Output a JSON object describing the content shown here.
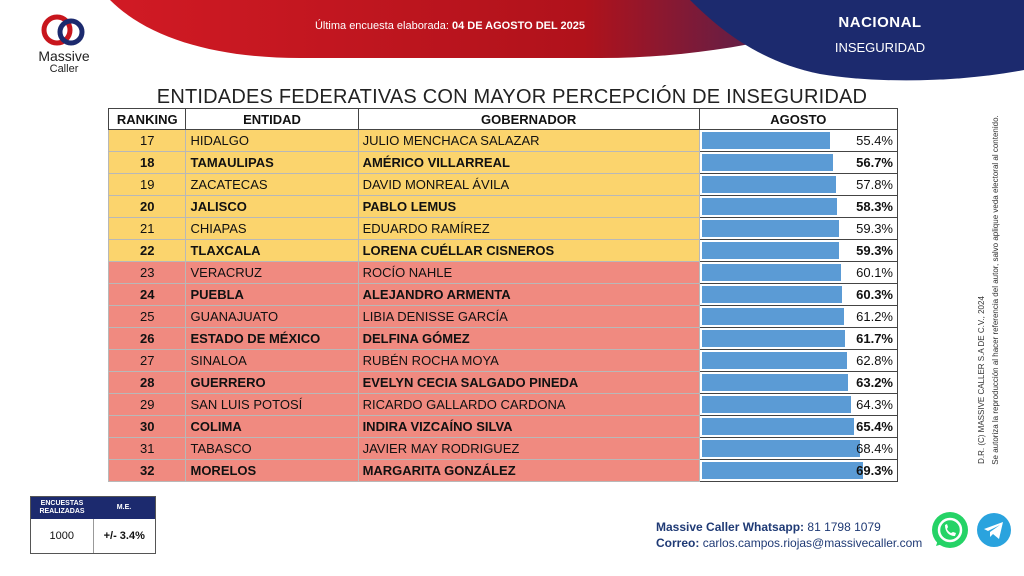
{
  "header": {
    "survey_label": "Última encuesta elaborada:",
    "survey_date": "04 DE AGOSTO DEL 2025",
    "scope": "NACIONAL",
    "topic": "INSEGURIDAD",
    "brand_line1": "Massive",
    "brand_line2": "Caller"
  },
  "colors": {
    "yellow_rows": "#fbd46d",
    "red_rows": "#f08a80",
    "bar": "#5b9bd5",
    "navy": "#1c2a6e",
    "crimson": "#b0121b"
  },
  "chart_data": {
    "type": "table",
    "title": "ENTIDADES FEDERATIVAS CON MAYOR PERCEPCIÓN DE INSEGURIDAD",
    "columns": [
      "RANKING",
      "ENTIDAD",
      "GOBERNADOR",
      "AGOSTO"
    ],
    "rows": [
      {
        "rank": "17",
        "entity": "HIDALGO",
        "governor": "JULIO MENCHACA SALAZAR",
        "value": 55.4,
        "label": "55.4%",
        "bold": false,
        "group": "y"
      },
      {
        "rank": "18",
        "entity": "TAMAULIPAS",
        "governor": "AMÉRICO VILLARREAL",
        "value": 56.7,
        "label": "56.7%",
        "bold": true,
        "group": "y"
      },
      {
        "rank": "19",
        "entity": "ZACATECAS",
        "governor": "DAVID MONREAL ÁVILA",
        "value": 57.8,
        "label": "57.8%",
        "bold": false,
        "group": "y"
      },
      {
        "rank": "20",
        "entity": "JALISCO",
        "governor": "PABLO LEMUS",
        "value": 58.3,
        "label": "58.3%",
        "bold": true,
        "group": "y"
      },
      {
        "rank": "21",
        "entity": "CHIAPAS",
        "governor": "EDUARDO RAMÍREZ",
        "value": 59.3,
        "label": "59.3%",
        "bold": false,
        "group": "y"
      },
      {
        "rank": "22",
        "entity": "TLAXCALA",
        "governor": "LORENA CUÉLLAR CISNEROS",
        "value": 59.3,
        "label": "59.3%",
        "bold": true,
        "group": "y"
      },
      {
        "rank": "23",
        "entity": "VERACRUZ",
        "governor": "ROCÍO NAHLE",
        "value": 60.1,
        "label": "60.1%",
        "bold": false,
        "group": "r"
      },
      {
        "rank": "24",
        "entity": "PUEBLA",
        "governor": "ALEJANDRO ARMENTA",
        "value": 60.3,
        "label": "60.3%",
        "bold": true,
        "group": "r"
      },
      {
        "rank": "25",
        "entity": "GUANAJUATO",
        "governor": "LIBIA DENISSE GARCÍA",
        "value": 61.2,
        "label": "61.2%",
        "bold": false,
        "group": "r"
      },
      {
        "rank": "26",
        "entity": "ESTADO DE MÉXICO",
        "governor": "DELFINA GÓMEZ",
        "value": 61.7,
        "label": "61.7%",
        "bold": true,
        "group": "r"
      },
      {
        "rank": "27",
        "entity": "SINALOA",
        "governor": "RUBÉN ROCHA MOYA",
        "value": 62.8,
        "label": "62.8%",
        "bold": false,
        "group": "r"
      },
      {
        "rank": "28",
        "entity": "GUERRERO",
        "governor": "EVELYN CECIA SALGADO PINEDA",
        "value": 63.2,
        "label": "63.2%",
        "bold": true,
        "group": "r"
      },
      {
        "rank": "29",
        "entity": "SAN LUIS POTOSÍ",
        "governor": "RICARDO GALLARDO CARDONA",
        "value": 64.3,
        "label": "64.3%",
        "bold": false,
        "group": "r"
      },
      {
        "rank": "30",
        "entity": "COLIMA",
        "governor": "INDIRA VIZCAÍNO SILVA",
        "value": 65.4,
        "label": "65.4%",
        "bold": true,
        "group": "r"
      },
      {
        "rank": "31",
        "entity": "TABASCO",
        "governor": "JAVIER MAY RODRIGUEZ",
        "value": 68.4,
        "label": "68.4%",
        "bold": false,
        "group": "r"
      },
      {
        "rank": "32",
        "entity": "MORELOS",
        "governor": "MARGARITA GONZÁLEZ",
        "value": 69.3,
        "label": "69.3%",
        "bold": true,
        "group": "r"
      }
    ],
    "value_range": [
      0,
      85
    ]
  },
  "stats": {
    "surveys_label": "ENCUESTAS REALIZADAS",
    "me_label": "M.E.",
    "surveys_value": "1000",
    "me_value": "+/- 3.4%"
  },
  "contact": {
    "whatsapp_label": "Massive Caller Whatsapp:",
    "whatsapp_number": "81 1798 1079",
    "email_label": "Correo:",
    "email": "carlos.campos.riojas@massivecaller.com"
  },
  "legal": {
    "line1": "D.R. (C) MASSIVE CALLER S.A DE C.V., 2024",
    "line2": "Se autoriza la reproducción al hacer referencia del autor, salvo aplique veda electoral al contenido."
  }
}
